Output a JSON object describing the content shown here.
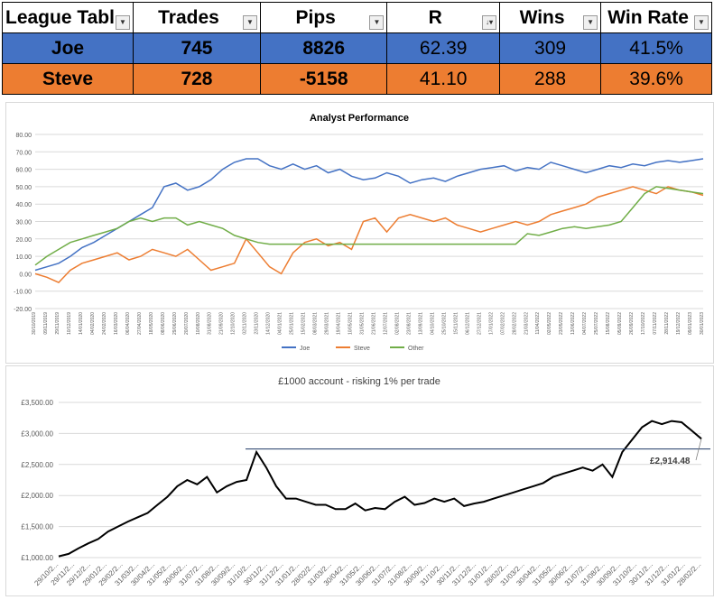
{
  "table": {
    "headers": [
      "League Tabl",
      "Trades",
      "Pips",
      "R",
      "Wins",
      "Win Rate"
    ],
    "header_filter_icons": [
      "chevron-down-icon",
      "chevron-down-icon",
      "chevron-down-icon",
      "sort-desc-icon",
      "chevron-down-icon",
      "chevron-down-icon"
    ],
    "rows": [
      {
        "name": "Joe",
        "trades": "745",
        "pips": "8826",
        "r": "62.39",
        "wins": "309",
        "win_rate": "41.5%",
        "color": "#4472c4"
      },
      {
        "name": "Steve",
        "trades": "728",
        "pips": "-5158",
        "r": "41.10",
        "wins": "288",
        "win_rate": "39.6%",
        "color": "#ed7d31"
      }
    ]
  },
  "chart_data": [
    {
      "type": "line",
      "title": "Analyst Performance",
      "ylim": [
        -20,
        80
      ],
      "yticks": [
        "80.00",
        "70.00",
        "60.00",
        "50.00",
        "40.00",
        "30.00",
        "20.00",
        "10.00",
        "0.00",
        "-10.00",
        "-20.00"
      ],
      "xlabels": [
        "30/10/2019",
        "09/11/2019",
        "29/11/2019",
        "10/12/2019",
        "14/01/2020",
        "04/02/2020",
        "24/02/2020",
        "16/03/2020",
        "06/04/2020",
        "27/04/2020",
        "18/05/2020",
        "08/06/2020",
        "29/06/2020",
        "20/07/2020",
        "10/08/2020",
        "31/08/2020",
        "21/09/2020",
        "12/10/2020",
        "02/11/2020",
        "23/11/2020",
        "14/12/2020",
        "04/01/2021",
        "25/01/2021",
        "15/02/2021",
        "08/03/2021",
        "29/03/2021",
        "19/04/2021",
        "10/05/2021",
        "31/05/2021",
        "21/06/2021",
        "12/07/2021",
        "02/08/2021",
        "23/08/2021",
        "13/09/2021",
        "04/10/2021",
        "25/10/2021",
        "15/11/2021",
        "06/12/2021",
        "27/12/2021",
        "17/01/2022",
        "07/02/2022",
        "28/02/2022",
        "21/03/2022",
        "11/04/2022",
        "02/05/2022",
        "23/05/2022",
        "13/06/2022",
        "04/07/2022",
        "25/07/2022",
        "15/08/2022",
        "05/09/2022",
        "26/09/2022",
        "17/10/2022",
        "07/11/2022",
        "28/11/2022",
        "19/12/2022",
        "09/01/2023",
        "30/01/2023"
      ],
      "series": [
        {
          "name": "Joe",
          "color": "#4472c4",
          "values": [
            2,
            4,
            6,
            10,
            15,
            18,
            22,
            26,
            30,
            34,
            38,
            50,
            52,
            48,
            50,
            54,
            60,
            64,
            66,
            66,
            62,
            60,
            63,
            60,
            62,
            58,
            60,
            56,
            54,
            55,
            58,
            56,
            52,
            54,
            55,
            53,
            56,
            58,
            60,
            61,
            62,
            59,
            61,
            60,
            64,
            62,
            60,
            58,
            60,
            62,
            61,
            63,
            62,
            64,
            65,
            64,
            65,
            66
          ]
        },
        {
          "name": "Steve",
          "color": "#ed7d31",
          "values": [
            0,
            -2,
            -5,
            2,
            6,
            8,
            10,
            12,
            8,
            10,
            14,
            12,
            10,
            14,
            8,
            2,
            4,
            6,
            20,
            12,
            4,
            0,
            12,
            18,
            20,
            16,
            18,
            14,
            30,
            32,
            24,
            32,
            34,
            32,
            30,
            32,
            28,
            26,
            24,
            26,
            28,
            30,
            28,
            30,
            34,
            36,
            38,
            40,
            44,
            46,
            48,
            50,
            48,
            46,
            50,
            48,
            47,
            45
          ]
        },
        {
          "name": "Other",
          "color": "#70ad47",
          "values": [
            5,
            10,
            14,
            18,
            20,
            22,
            24,
            26,
            30,
            32,
            30,
            32,
            32,
            28,
            30,
            28,
            26,
            22,
            20,
            18,
            17,
            17,
            17,
            17,
            17,
            17,
            17,
            17,
            17,
            17,
            17,
            17,
            17,
            17,
            17,
            17,
            17,
            17,
            17,
            17,
            17,
            17,
            23,
            22,
            24,
            26,
            27,
            26,
            27,
            28,
            30,
            38,
            46,
            50,
            49,
            48,
            47,
            46
          ]
        }
      ]
    },
    {
      "type": "line",
      "title": "£1000 account - risking 1% per trade",
      "ylim": [
        1000,
        3500
      ],
      "yticks": [
        "£3,500.00",
        "£3,000.00",
        "£2,500.00",
        "£2,000.00",
        "£1,500.00",
        "£1,000.00"
      ],
      "xlabels": [
        "29/10/2...",
        "29/11/2...",
        "29/12/2...",
        "29/01/2...",
        "29/02/2...",
        "31/03/2...",
        "30/04/2...",
        "31/05/2...",
        "30/06/2...",
        "31/07/2...",
        "31/08/2...",
        "30/09/2...",
        "31/10/2...",
        "30/11/2...",
        "31/12/2...",
        "31/01/2...",
        "28/02/2...",
        "31/03/2...",
        "30/04/2...",
        "31/05/2...",
        "30/06/2...",
        "31/07/2...",
        "31/08/2...",
        "30/09/2...",
        "31/10/2...",
        "30/11/2...",
        "31/12/2...",
        "31/01/2...",
        "28/02/2...",
        "31/03/2...",
        "30/04/2...",
        "31/05/2...",
        "30/06/2...",
        "31/07/2...",
        "31/08/2...",
        "30/09/2...",
        "31/10/2...",
        "30/11/2...",
        "31/12/2...",
        "31/01/2...",
        "28/02/2..."
      ],
      "series": [
        {
          "name": "",
          "color": "#000000",
          "values": [
            1020,
            1060,
            1150,
            1230,
            1300,
            1420,
            1500,
            1580,
            1650,
            1720,
            1850,
            1980,
            2150,
            2250,
            2180,
            2300,
            2050,
            2150,
            2220,
            2250,
            2700,
            2450,
            2150,
            1950,
            1950,
            1900,
            1850,
            1850,
            1780,
            1780,
            1870,
            1760,
            1800,
            1780,
            1900,
            1980,
            1850,
            1880,
            1950,
            1900,
            1950,
            1830,
            1870,
            1900,
            1950,
            2000,
            2050,
            2100,
            2150,
            2200,
            2300,
            2350,
            2400,
            2450,
            2400,
            2500,
            2300,
            2700,
            2900,
            3100,
            3200,
            3150,
            3200,
            3180,
            3050,
            2914
          ]
        }
      ],
      "reference_line": 2750,
      "annotation": "£2,914.48"
    }
  ]
}
